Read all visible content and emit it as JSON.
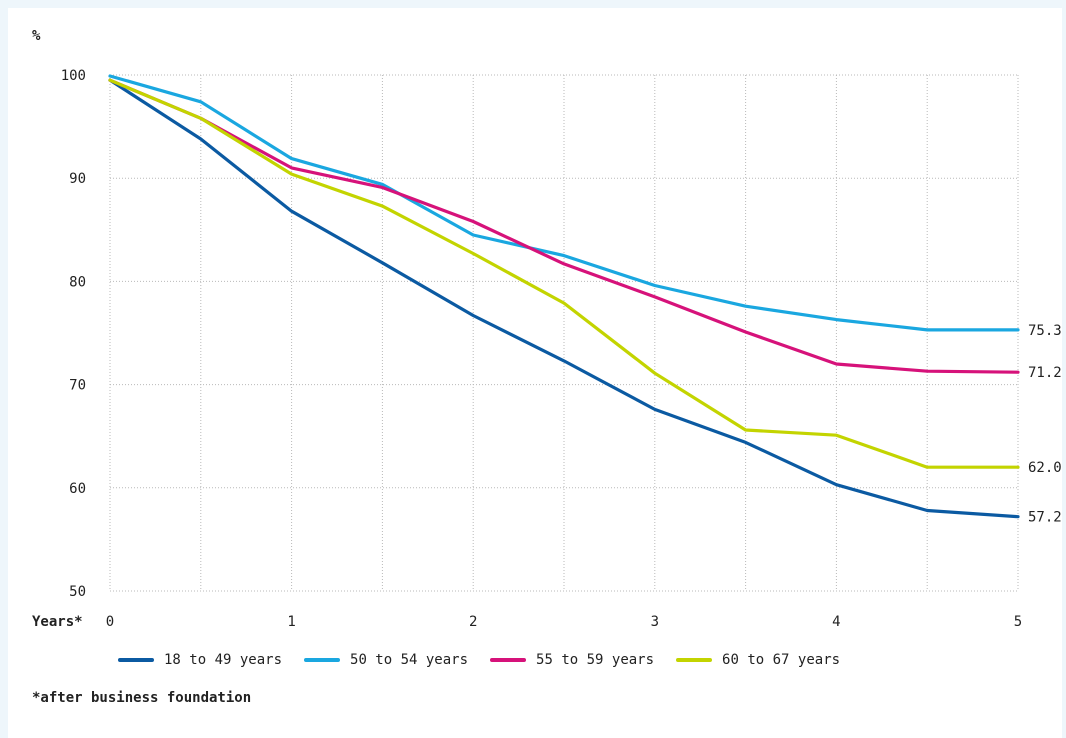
{
  "chart_data": {
    "type": "line",
    "y_unit": "%",
    "x_axis_label": "Years*",
    "x_ticks": [
      "0",
      "1",
      "2",
      "3",
      "4",
      "5"
    ],
    "y_ticks": [
      "50",
      "60",
      "70",
      "80",
      "90",
      "100"
    ],
    "xlim": [
      0,
      5
    ],
    "ylim": [
      50,
      100
    ],
    "grid": true,
    "legend_position": "bottom",
    "x": [
      0,
      0.5,
      1,
      1.5,
      2,
      2.5,
      3,
      3.5,
      4,
      4.5,
      5
    ],
    "series": [
      {
        "name": "18 to 49 years",
        "color": "#0b5aa2",
        "values": [
          99.5,
          93.8,
          86.8,
          81.8,
          76.7,
          72.3,
          67.6,
          64.4,
          60.3,
          57.8,
          57.2
        ],
        "end_label": "57.2"
      },
      {
        "name": "50 to 54 years",
        "color": "#1aa7e0",
        "values": [
          99.9,
          97.4,
          91.9,
          89.4,
          84.5,
          82.5,
          79.6,
          77.6,
          76.3,
          75.3,
          75.3
        ],
        "end_label": "75.3"
      },
      {
        "name": "55 to 59 years",
        "color": "#d6127a",
        "values": [
          99.5,
          95.8,
          91.0,
          89.1,
          85.8,
          81.7,
          78.5,
          75.1,
          72.0,
          71.3,
          71.2
        ],
        "end_label": "71.2"
      },
      {
        "name": "60 to 67 years",
        "color": "#c3d400",
        "values": [
          99.5,
          95.8,
          90.4,
          87.3,
          82.7,
          77.9,
          71.1,
          65.6,
          65.1,
          62.0,
          62.0
        ],
        "end_label": "62.0"
      }
    ]
  },
  "footnote": "*after business foundation"
}
